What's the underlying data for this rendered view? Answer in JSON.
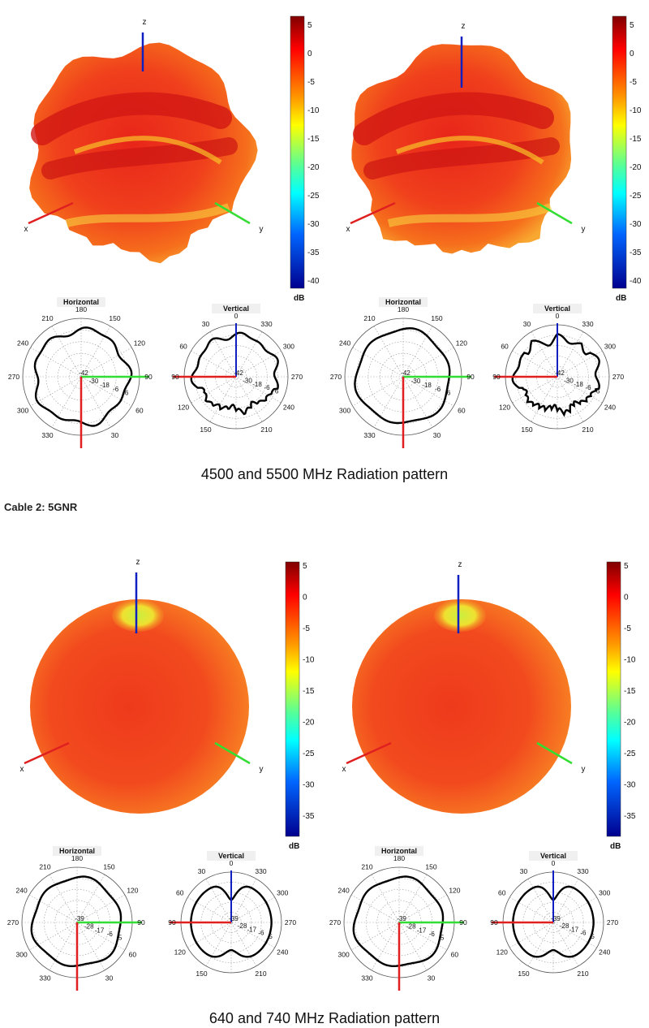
{
  "figure1": {
    "caption": "4500 and 5500 MHz Radiation pattern",
    "colorbar": {
      "ticks": [
        "5",
        "0",
        "-5",
        "-10",
        "-15",
        "-20",
        "-25",
        "-30",
        "-35",
        "-40"
      ],
      "unit": "dB",
      "max": 6,
      "min": -42
    },
    "polar_rings": [
      "-42",
      "-30",
      "-18",
      "-6",
      "6"
    ],
    "panels": [
      {
        "frequency_mhz": 4500
      },
      {
        "frequency_mhz": 5500
      }
    ]
  },
  "section_heading": "Cable 2: 5GNR",
  "figure2": {
    "caption": "640 and 740 MHz Radiation pattern",
    "colorbar": {
      "ticks": [
        "5",
        "0",
        "-5",
        "-10",
        "-15",
        "-20",
        "-25",
        "-30",
        "-35"
      ],
      "unit": "dB",
      "max": 5,
      "min": -39
    },
    "polar_rings": [
      "-39",
      "-28",
      "-17",
      "-6",
      "5"
    ],
    "panels": [
      {
        "frequency_mhz": 640
      },
      {
        "frequency_mhz": 740
      }
    ]
  },
  "axes": {
    "x": "x",
    "y": "y",
    "z": "z"
  },
  "plot_titles": {
    "horizontal": "Horizontal",
    "vertical": "Vertical"
  },
  "horizontal_angles": [
    "180",
    "150",
    "120",
    "90",
    "60",
    "30",
    "330",
    "300",
    "270",
    "240",
    "210"
  ],
  "vertical_angles": [
    "0",
    "330",
    "300",
    "270",
    "240",
    "210",
    "150",
    "120",
    "90",
    "60",
    "30"
  ],
  "colors": {
    "x_axis": "#e02020",
    "y_axis": "#33dd33",
    "z_axis": "#1020c0"
  }
}
